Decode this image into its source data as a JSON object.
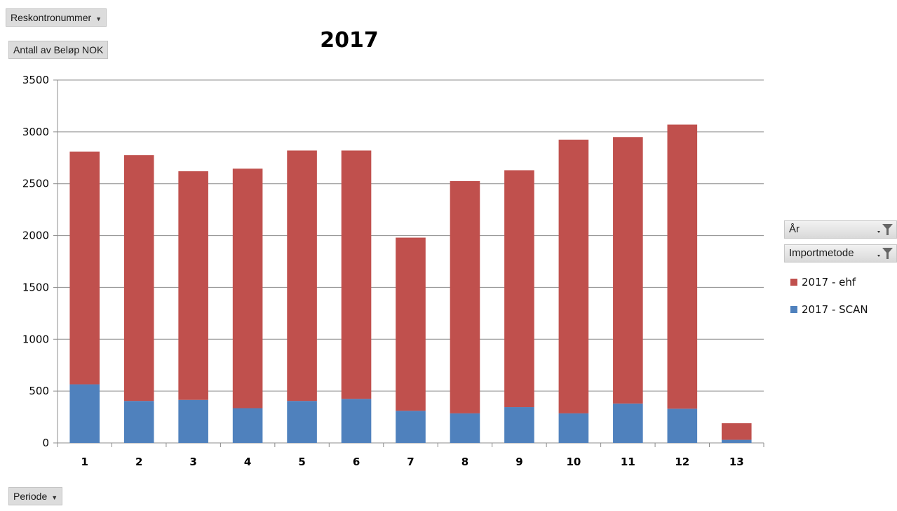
{
  "filters": {
    "report_filter_label": "Reskontronummer",
    "values_label": "Antall av Beløp NOK",
    "axis_field_label": "Periode",
    "legend_field_year": "År",
    "legend_field_method": "Importmetode"
  },
  "colors": {
    "ehf": "#c0504d",
    "scan": "#4f81bd",
    "gridline": "#8c8c8c",
    "axis": "#8c8c8c"
  },
  "chart_data": {
    "type": "bar",
    "stacked": true,
    "title": "2017",
    "categories": [
      "1",
      "2",
      "3",
      "4",
      "5",
      "6",
      "7",
      "8",
      "9",
      "10",
      "11",
      "12",
      "13"
    ],
    "series": [
      {
        "name": "2017 - SCAN",
        "values": [
          565,
          405,
          415,
          335,
          405,
          425,
          310,
          285,
          345,
          285,
          380,
          330,
          30
        ]
      },
      {
        "name": "2017 - ehf",
        "values": [
          2245,
          2370,
          2205,
          2310,
          2415,
          2395,
          1670,
          2240,
          2285,
          2640,
          2570,
          2740,
          160
        ]
      }
    ],
    "legend_order": [
      "2017 - ehf",
      "2017 - SCAN"
    ],
    "ylim": [
      0,
      3500
    ],
    "yticks": [
      "0",
      "500",
      "1000",
      "1500",
      "2000",
      "2500",
      "3000",
      "3500"
    ],
    "grid": true,
    "legend_position": "right"
  }
}
